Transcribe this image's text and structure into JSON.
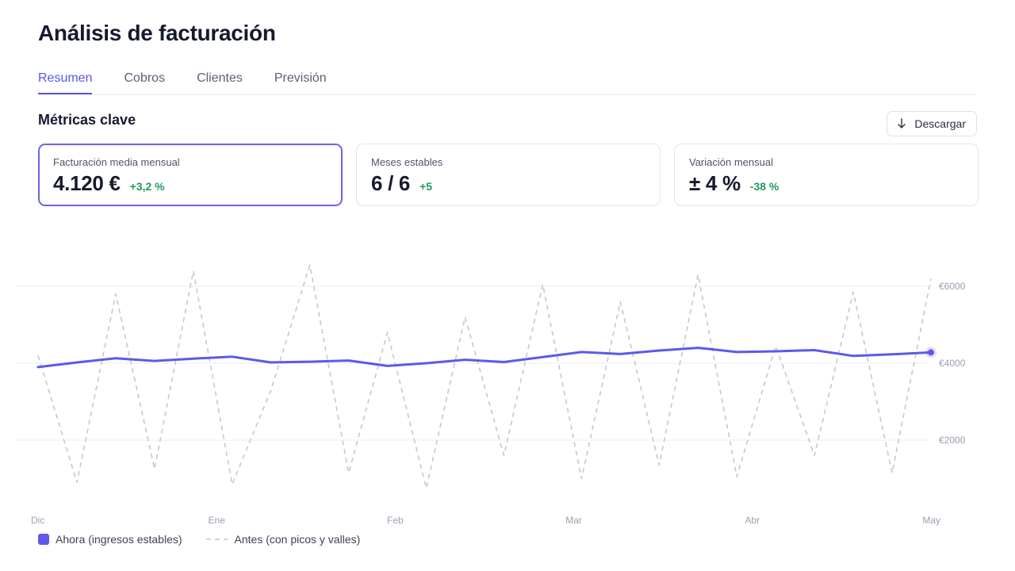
{
  "header": {
    "title": "Análisis de facturación"
  },
  "tabs": [
    {
      "label": "Resumen",
      "active": true
    },
    {
      "label": "Cobros",
      "active": false
    },
    {
      "label": "Clientes",
      "active": false
    },
    {
      "label": "Previsión",
      "active": false
    }
  ],
  "section": {
    "title": "Métricas clave",
    "download_label": "Descargar",
    "download_icon": "arrow-down-icon"
  },
  "cards": [
    {
      "label": "Facturación media mensual",
      "value": "4.120 €",
      "delta": "+3,2 %",
      "selected": true
    },
    {
      "label": "Meses estables",
      "value": "6 / 6",
      "delta": "+5",
      "selected": false
    },
    {
      "label": "Variación mensual",
      "value": "± 4 %",
      "delta": "-38 %",
      "selected": false
    }
  ],
  "colors": {
    "accent": "#5a55e8",
    "line_now": "#5e59e6",
    "line_before": "#c5c7d2",
    "positive": "#1f9a5b"
  },
  "chart_data": {
    "type": "line",
    "x_tick_labels": [
      "Dic",
      "Ene",
      "Feb",
      "Mar",
      "Abr",
      "May"
    ],
    "y_tick_labels": [
      "€2000",
      "€4000",
      "€6000"
    ],
    "y_ticks": [
      2000,
      4000,
      6000
    ],
    "ylim": [
      0,
      8000
    ],
    "grid": true,
    "legend_position": "bottom-left",
    "point_count": 24,
    "series": [
      {
        "name": "Ahora (ingresos estables)",
        "style": "solid",
        "values": [
          3900,
          4020,
          4130,
          4060,
          4120,
          4170,
          4020,
          4040,
          4070,
          3930,
          4000,
          4090,
          4030,
          4160,
          4290,
          4240,
          4330,
          4400,
          4290,
          4310,
          4340,
          4190,
          4230,
          4280
        ]
      },
      {
        "name": "Antes (con picos y valles)",
        "style": "dashed",
        "values": [
          4200,
          900,
          5800,
          1250,
          6400,
          850,
          3300,
          6550,
          1150,
          4800,
          750,
          5200,
          1600,
          6050,
          1000,
          5600,
          1350,
          6300,
          1050,
          4450,
          1600,
          5850,
          1150,
          6200
        ]
      }
    ]
  }
}
